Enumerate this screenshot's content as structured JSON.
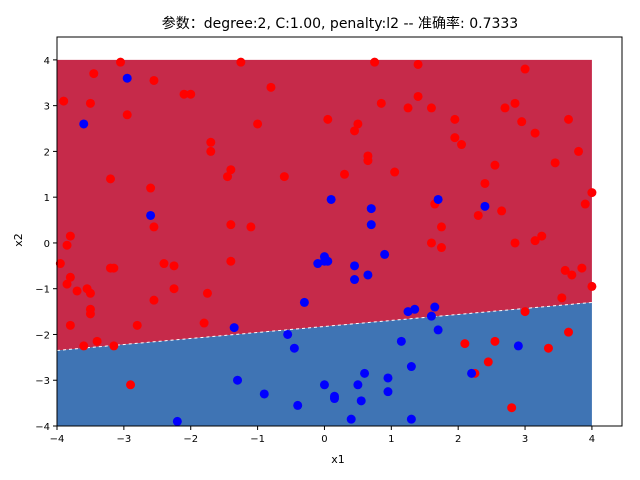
{
  "chart_data": {
    "type": "scatter",
    "title": "参数：degree:2, C:1.00, penalty:l2 -- 准确率: 0.7333",
    "xlabel": "x1",
    "ylabel": "x2",
    "xlim": [
      -4,
      4.45
    ],
    "ylim": [
      -4,
      4.5
    ],
    "x_ticks": [
      -4,
      -3,
      -2,
      -1,
      0,
      1,
      2,
      3,
      4
    ],
    "y_ticks": [
      -4,
      -3,
      -2,
      -1,
      0,
      1,
      2,
      3,
      4
    ],
    "grid": false,
    "decision_region": {
      "x_range": [
        -4,
        4
      ],
      "y_range": [
        -4,
        4
      ],
      "boundary": [
        [
          -4,
          -2.35
        ],
        [
          4,
          -1.3
        ]
      ],
      "upper_class_color": "#c62a4a",
      "lower_class_color": "#3f74b4"
    },
    "series": [
      {
        "color": "#ff0000",
        "points": [
          [
            -3.9,
            3.1
          ],
          [
            -3.05,
            3.95
          ],
          [
            -3.45,
            3.7
          ],
          [
            -2.55,
            3.55
          ],
          [
            -1.25,
            3.95
          ],
          [
            0.75,
            3.95
          ],
          [
            1.4,
            3.9
          ],
          [
            3.0,
            3.8
          ],
          [
            -3.5,
            3.05
          ],
          [
            -2.95,
            2.8
          ],
          [
            -2.1,
            3.25
          ],
          [
            -2.0,
            3.25
          ],
          [
            -0.8,
            3.4
          ],
          [
            0.05,
            2.7
          ],
          [
            0.5,
            2.6
          ],
          [
            0.85,
            3.05
          ],
          [
            1.25,
            2.95
          ],
          [
            1.4,
            3.2
          ],
          [
            1.6,
            2.95
          ],
          [
            2.7,
            2.95
          ],
          [
            2.85,
            3.05
          ],
          [
            -1.0,
            2.6
          ],
          [
            0.45,
            2.45
          ],
          [
            1.95,
            2.7
          ],
          [
            2.95,
            2.65
          ],
          [
            3.15,
            2.4
          ],
          [
            3.65,
            2.7
          ],
          [
            -1.7,
            2.2
          ],
          [
            -1.7,
            2.0
          ],
          [
            0.65,
            1.9
          ],
          [
            0.65,
            1.8
          ],
          [
            1.95,
            2.3
          ],
          [
            2.05,
            2.15
          ],
          [
            2.55,
            1.7
          ],
          [
            3.45,
            1.75
          ],
          [
            3.8,
            2.0
          ],
          [
            -1.4,
            1.6
          ],
          [
            -1.45,
            1.45
          ],
          [
            -0.6,
            1.45
          ],
          [
            0.3,
            1.5
          ],
          [
            1.05,
            1.55
          ],
          [
            -3.2,
            1.4
          ],
          [
            -2.6,
            1.2
          ],
          [
            2.4,
            1.3
          ],
          [
            -3.8,
            0.15
          ],
          [
            -3.85,
            -0.05
          ],
          [
            -2.55,
            0.35
          ],
          [
            -1.4,
            0.4
          ],
          [
            -1.1,
            0.35
          ],
          [
            1.65,
            0.85
          ],
          [
            1.75,
            0.35
          ],
          [
            1.6,
            0.0
          ],
          [
            1.75,
            -0.1
          ],
          [
            2.3,
            0.6
          ],
          [
            2.65,
            0.7
          ],
          [
            2.85,
            0.0
          ],
          [
            3.15,
            0.05
          ],
          [
            3.25,
            0.15
          ],
          [
            3.9,
            0.85
          ],
          [
            4.0,
            1.1
          ],
          [
            -3.95,
            -0.45
          ],
          [
            -3.8,
            -0.75
          ],
          [
            -3.85,
            -0.9
          ],
          [
            -3.7,
            -1.05
          ],
          [
            -3.55,
            -1.0
          ],
          [
            -3.5,
            -1.1
          ],
          [
            -3.15,
            -0.55
          ],
          [
            -3.2,
            -0.55
          ],
          [
            -2.4,
            -0.45
          ],
          [
            -2.25,
            -0.5
          ],
          [
            -2.25,
            -1.0
          ],
          [
            -2.55,
            -1.25
          ],
          [
            -1.4,
            -0.4
          ],
          [
            -1.75,
            -1.1
          ],
          [
            3.6,
            -0.6
          ],
          [
            3.7,
            -0.7
          ],
          [
            3.85,
            -0.55
          ],
          [
            4.0,
            -0.95
          ],
          [
            -3.5,
            -1.55
          ],
          [
            -3.5,
            -1.45
          ],
          [
            -3.8,
            -1.8
          ],
          [
            -2.8,
            -1.8
          ],
          [
            -1.8,
            -1.75
          ],
          [
            -3.4,
            -2.15
          ],
          [
            -3.6,
            -2.25
          ],
          [
            -3.15,
            -2.25
          ],
          [
            3.0,
            -1.5
          ],
          [
            3.55,
            -1.2
          ],
          [
            3.65,
            -1.95
          ],
          [
            2.1,
            -2.2
          ],
          [
            2.55,
            -2.15
          ],
          [
            3.35,
            -2.3
          ],
          [
            2.45,
            -2.6
          ],
          [
            2.25,
            -2.85
          ],
          [
            2.8,
            -3.6
          ],
          [
            -2.9,
            -3.1
          ]
        ]
      },
      {
        "color": "#0000ff",
        "points": [
          [
            -2.95,
            3.6
          ],
          [
            -3.6,
            2.6
          ],
          [
            -2.6,
            0.6
          ],
          [
            0.1,
            0.95
          ],
          [
            0.7,
            0.75
          ],
          [
            1.7,
            0.95
          ],
          [
            2.4,
            0.8
          ],
          [
            0.7,
            0.4
          ],
          [
            0.0,
            -0.3
          ],
          [
            0.0,
            -0.4
          ],
          [
            -0.1,
            -0.45
          ],
          [
            0.05,
            -0.4
          ],
          [
            0.9,
            -0.25
          ],
          [
            0.45,
            -0.5
          ],
          [
            0.65,
            -0.7
          ],
          [
            0.45,
            -0.8
          ],
          [
            -0.3,
            -1.3
          ],
          [
            -1.35,
            -1.85
          ],
          [
            -0.55,
            -2.0
          ],
          [
            -0.45,
            -2.3
          ],
          [
            1.25,
            -1.5
          ],
          [
            1.35,
            -1.45
          ],
          [
            1.6,
            -1.6
          ],
          [
            1.65,
            -1.4
          ],
          [
            1.7,
            -1.9
          ],
          [
            1.15,
            -2.15
          ],
          [
            2.9,
            -2.25
          ],
          [
            1.3,
            -2.7
          ],
          [
            2.2,
            -2.85
          ],
          [
            -1.3,
            -3.0
          ],
          [
            -0.9,
            -3.3
          ],
          [
            0.0,
            -3.1
          ],
          [
            0.15,
            -3.35
          ],
          [
            0.15,
            -3.4
          ],
          [
            0.5,
            -3.1
          ],
          [
            0.6,
            -2.85
          ],
          [
            0.95,
            -2.95
          ],
          [
            0.95,
            -3.25
          ],
          [
            0.55,
            -3.45
          ],
          [
            -0.4,
            -3.55
          ],
          [
            0.4,
            -3.85
          ],
          [
            1.3,
            -3.85
          ],
          [
            -2.2,
            -3.9
          ]
        ]
      }
    ]
  }
}
